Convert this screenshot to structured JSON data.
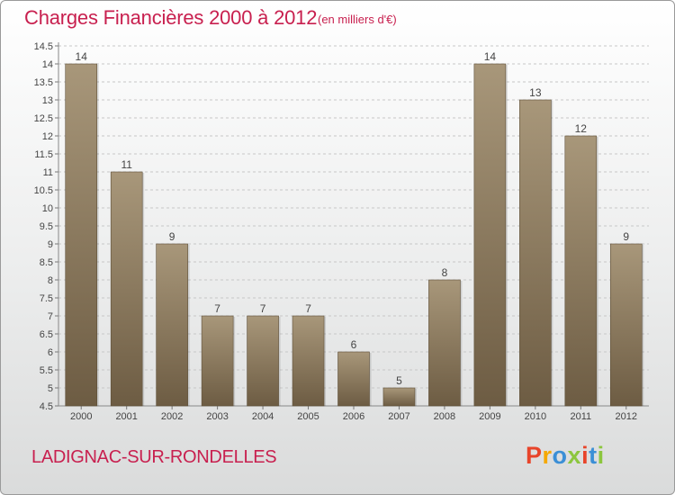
{
  "header": {
    "title": "Charges Financières 2000 à 2012",
    "subtitle": "(en milliers d'€)"
  },
  "footer": {
    "commune": "LADIGNAC-SUR-RONDELLES",
    "logo_text": "Proxiti",
    "logo_colors": [
      "#e8442a",
      "#f5a800",
      "#3b8fd6",
      "#8cc63e",
      "#e8442a",
      "#3b8fd6",
      "#8cc63e"
    ]
  },
  "colors": {
    "accent": "#c8204f",
    "bar_top": "#a8977a",
    "bar_bottom": "#6d5c43",
    "grid": "#c7c7c7"
  },
  "chart_data": {
    "type": "bar",
    "title": "Charges Financières 2000 à 2012",
    "subtitle": "(en milliers d'€)",
    "xlabel": "",
    "ylabel": "",
    "categories": [
      "2000",
      "2001",
      "2002",
      "2003",
      "2004",
      "2005",
      "2006",
      "2007",
      "2008",
      "2009",
      "2010",
      "2011",
      "2012"
    ],
    "values": [
      14,
      11,
      9,
      7,
      7,
      7,
      6,
      5,
      8,
      14,
      13,
      12,
      9
    ],
    "data_labels": [
      "14",
      "11",
      "9",
      "7",
      "7",
      "7",
      "6",
      "5",
      "8",
      "14",
      "13",
      "12",
      "9"
    ],
    "ylim": [
      4.5,
      14.5
    ],
    "yticks": [
      "4.5",
      "5",
      "5.5",
      "6",
      "6.5",
      "7",
      "7.5",
      "8",
      "8.5",
      "9",
      "9.5",
      "10",
      "10.5",
      "11",
      "11.5",
      "12",
      "12.5",
      "13",
      "13.5",
      "14",
      "14.5"
    ],
    "grid": true,
    "legend": "none"
  }
}
